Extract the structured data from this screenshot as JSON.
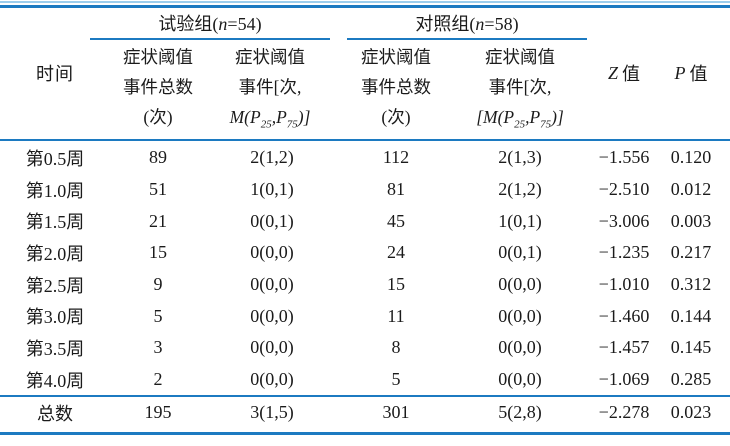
{
  "colors": {
    "rule_blue": "#1c7ac1",
    "rule_light_blue": "#9ccdec",
    "text": "#1b1b1b"
  },
  "header": {
    "time": "时间",
    "exp_group": {
      "prefix": "试验组(",
      "var": "n",
      "suffix": "=54)"
    },
    "ctrl_group": {
      "prefix": "对照组(",
      "var": "n",
      "suffix": "=58)"
    },
    "exp_total": {
      "line1": "症状阈值",
      "line2": "事件总数",
      "line3": "(次)"
    },
    "exp_median": {
      "line1": "症状阈值",
      "line2": "事件[次,",
      "formula": {
        "head": "M(P",
        "sub1": "25",
        "mid": ",P",
        "sub2": "75",
        "tail": ")]"
      }
    },
    "ctrl_total": {
      "line1": "症状阈值",
      "line2": "事件总数",
      "line3": "(次)"
    },
    "ctrl_median": {
      "line1": "症状阈值",
      "line2": "事件[次,",
      "formula": {
        "head": "[M(P",
        "sub1": "25",
        "mid": ",P",
        "sub2": "75",
        "tail": ")]"
      }
    },
    "z": {
      "var": "Z",
      "label": "值"
    },
    "p": {
      "var": "P",
      "label": "值"
    }
  },
  "rows": [
    {
      "time": "第0.5周",
      "exp_total": "89",
      "exp_median": "2(1,2)",
      "ctrl_total": "112",
      "ctrl_median": "2(1,3)",
      "z": "−1.556",
      "p": "0.120"
    },
    {
      "time": "第1.0周",
      "exp_total": "51",
      "exp_median": "1(0,1)",
      "ctrl_total": "81",
      "ctrl_median": "2(1,2)",
      "z": "−2.510",
      "p": "0.012"
    },
    {
      "time": "第1.5周",
      "exp_total": "21",
      "exp_median": "0(0,1)",
      "ctrl_total": "45",
      "ctrl_median": "1(0,1)",
      "z": "−3.006",
      "p": "0.003"
    },
    {
      "time": "第2.0周",
      "exp_total": "15",
      "exp_median": "0(0,0)",
      "ctrl_total": "24",
      "ctrl_median": "0(0,1)",
      "z": "−1.235",
      "p": "0.217"
    },
    {
      "time": "第2.5周",
      "exp_total": "9",
      "exp_median": "0(0,0)",
      "ctrl_total": "15",
      "ctrl_median": "0(0,0)",
      "z": "−1.010",
      "p": "0.312"
    },
    {
      "time": "第3.0周",
      "exp_total": "5",
      "exp_median": "0(0,0)",
      "ctrl_total": "11",
      "ctrl_median": "0(0,0)",
      "z": "−1.460",
      "p": "0.144"
    },
    {
      "time": "第3.5周",
      "exp_total": "3",
      "exp_median": "0(0,0)",
      "ctrl_total": "8",
      "ctrl_median": "0(0,0)",
      "z": "−1.457",
      "p": "0.145"
    },
    {
      "time": "第4.0周",
      "exp_total": "2",
      "exp_median": "0(0,0)",
      "ctrl_total": "5",
      "ctrl_median": "0(0,0)",
      "z": "−1.069",
      "p": "0.285"
    }
  ],
  "total": {
    "time": "总数",
    "exp_total": "195",
    "exp_median": "3(1,5)",
    "ctrl_total": "301",
    "ctrl_median": "5(2,8)",
    "z": "−2.278",
    "p": "0.023"
  }
}
